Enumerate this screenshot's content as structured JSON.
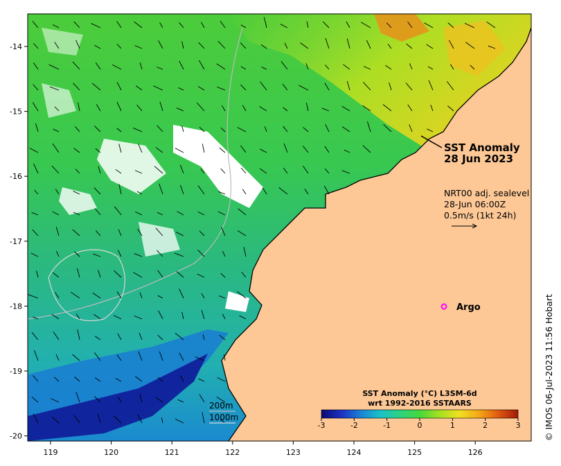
{
  "map": {
    "title_line1": "SST Anomaly",
    "title_line2": "28 Jun 2023",
    "current_info": {
      "line1": "NRT00 adj. sealevel",
      "line2": "28-Jun 06:00Z",
      "line3": "0.5m/s (1kt 24h)"
    },
    "argo_label": "Argo",
    "argo_color": "#ff00ff",
    "scale": {
      "contour1": "200m",
      "contour2": "1000m"
    },
    "credit": "© IMOS 06-Jul-2023 11:56 Hobart",
    "lon_ticks": [
      "119",
      "120",
      "121",
      "122",
      "123",
      "124",
      "125",
      "126"
    ],
    "lat_ticks": [
      "-14",
      "-15",
      "-16",
      "-17",
      "-18",
      "-19",
      "-20"
    ],
    "land_color": "#fdc896",
    "colorbar": {
      "title_line1": "SST Anomaly (°C) L3SM-6d",
      "title_line2": "wrt 1992-2016 SSTAARS",
      "tick_labels": [
        "-3",
        "-2",
        "-1",
        "0",
        "1",
        "2",
        "3"
      ],
      "range": [
        -3,
        3
      ],
      "colors": [
        "#0a0a6e",
        "#1e2fc0",
        "#1a82d4",
        "#19c2c8",
        "#2ed282",
        "#46d83a",
        "#a6e022",
        "#f0e020",
        "#f5a818",
        "#e05a10",
        "#a01808"
      ]
    }
  }
}
